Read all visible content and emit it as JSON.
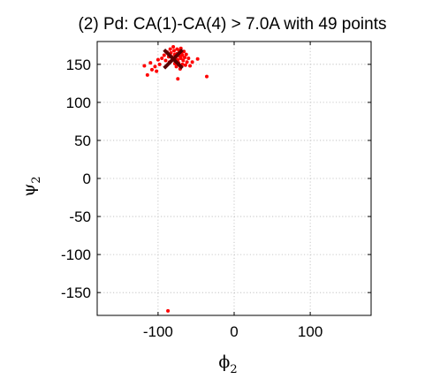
{
  "chart_data": {
    "type": "scatter",
    "title": "(2) Pd: CA(1)-CA(4) > 7.0A with 49 points",
    "xlabel": {
      "base": "ϕ",
      "sub": "2"
    },
    "ylabel": {
      "base": "ψ",
      "sub": "2"
    },
    "xlim": [
      -180,
      180
    ],
    "ylim": [
      -180,
      180
    ],
    "xticks": [
      -100,
      0,
      100
    ],
    "yticks": [
      150,
      100,
      50,
      0,
      -50,
      -100,
      -150
    ],
    "x_tick_labels": [
      "-100",
      "0",
      "100"
    ],
    "y_tick_labels": [
      "150",
      "100",
      "50",
      "0",
      "-50",
      "-100",
      "-150"
    ],
    "grid": true,
    "colors": {
      "points": "#ff0000",
      "mean_marker": "#5a0000",
      "grid": "#b8b8b8"
    },
    "series": [
      {
        "marker": "dot",
        "points": [
          [
            -118,
            148
          ],
          [
            -114,
            136
          ],
          [
            -110,
            152
          ],
          [
            -108,
            143
          ],
          [
            -104,
            147
          ],
          [
            -102,
            141
          ],
          [
            -100,
            156
          ],
          [
            -98,
            150
          ],
          [
            -95,
            158
          ],
          [
            -92,
            162
          ],
          [
            -90,
            155
          ],
          [
            -88,
            166
          ],
          [
            -86,
            160
          ],
          [
            -85,
            153
          ],
          [
            -84,
            170
          ],
          [
            -83,
            165
          ],
          [
            -82,
            160
          ],
          [
            -81,
            157
          ],
          [
            -80,
            173
          ],
          [
            -79,
            168
          ],
          [
            -78,
            163
          ],
          [
            -78,
            151
          ],
          [
            -77,
            159
          ],
          [
            -76,
            147
          ],
          [
            -75,
            170
          ],
          [
            -75,
            164
          ],
          [
            -74,
            131
          ],
          [
            -74,
            156
          ],
          [
            -73,
            152
          ],
          [
            -72,
            168
          ],
          [
            -72,
            161
          ],
          [
            -71,
            144
          ],
          [
            -70,
            158
          ],
          [
            -70,
            171
          ],
          [
            -69,
            165
          ],
          [
            -68,
            150
          ],
          [
            -68,
            162
          ],
          [
            -67,
            155
          ],
          [
            -66,
            167
          ],
          [
            -65,
            159
          ],
          [
            -64,
            149
          ],
          [
            -63,
            163
          ],
          [
            -62,
            153
          ],
          [
            -60,
            158
          ],
          [
            -58,
            148
          ],
          [
            -55,
            153
          ],
          [
            -48,
            157
          ],
          [
            -36,
            134
          ],
          [
            -87,
            -174
          ]
        ]
      },
      {
        "marker": "x",
        "points": [
          [
            -80,
            157
          ]
        ]
      }
    ]
  }
}
